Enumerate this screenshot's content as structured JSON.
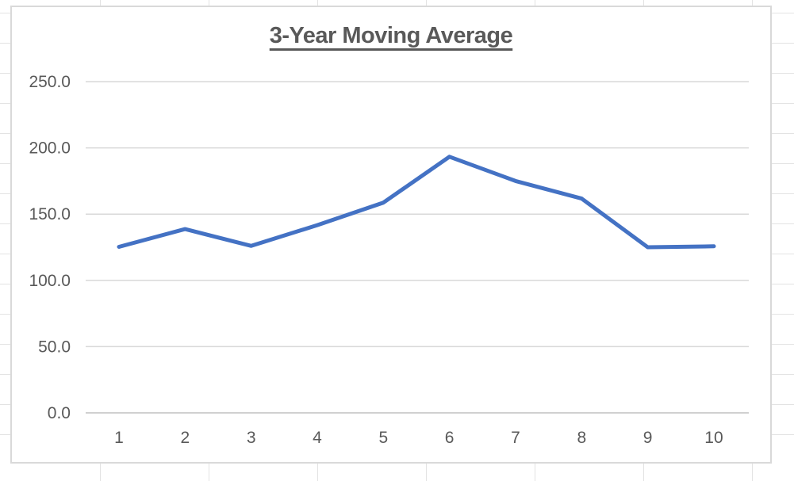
{
  "sheet": {
    "grid_color": "#e3e3e3",
    "background": "#ffffff"
  },
  "chart": {
    "background": "#ffffff",
    "border_color": "#d9d9d9",
    "title_color": "#595959",
    "tick_label_color": "#595959",
    "gridline_color": "#d9d9d9",
    "axis_line_color": "#d0d0d0",
    "line_color": "#4472c4"
  },
  "chart_data": {
    "type": "line",
    "title": "3-Year Moving Average",
    "categories": [
      "1",
      "2",
      "3",
      "4",
      "5",
      "6",
      "7",
      "8",
      "9",
      "10"
    ],
    "series": [
      {
        "name": "3-Year Moving Average",
        "values": [
          125.3,
          138.7,
          126.0,
          141.7,
          158.7,
          193.3,
          175.0,
          161.7,
          125.0,
          125.7
        ]
      }
    ],
    "xlabel": "",
    "ylabel": "",
    "ylim": [
      0,
      250
    ],
    "ytick_interval": 50,
    "ytick_labels": [
      "0.0",
      "50.0",
      "100.0",
      "150.0",
      "200.0",
      "250.0"
    ],
    "grid": true,
    "legend": "none",
    "markers": false
  }
}
